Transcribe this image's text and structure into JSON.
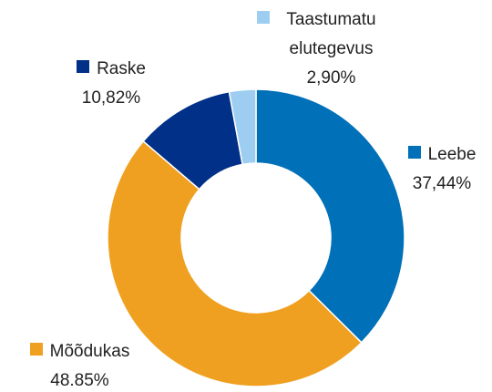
{
  "chart_data": {
    "type": "donut",
    "categories": [
      "Leebe",
      "Mõõdukas",
      "Raske",
      "Taastumatu elutegevus"
    ],
    "values": [
      37.44,
      48.85,
      10.82,
      2.9
    ],
    "value_labels": [
      "37,44%",
      "48.85%",
      "10,82%",
      "2,90%"
    ],
    "colors": [
      "#0070b8",
      "#f0a020",
      "#003087",
      "#9dcdf0"
    ]
  }
}
